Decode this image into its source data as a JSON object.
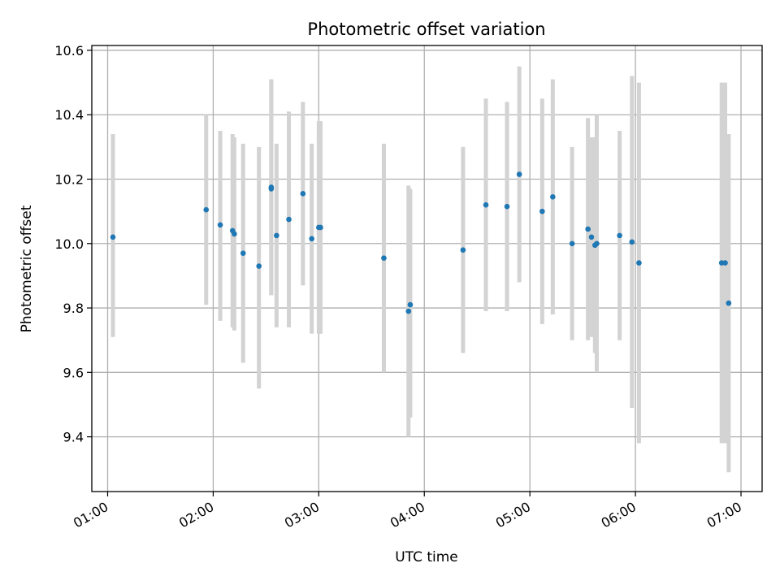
{
  "chart_data": {
    "type": "scatter",
    "title": "Photometric offset variation",
    "xlabel": "UTC time",
    "ylabel": "Photometric offset",
    "xlim": [
      "00:51",
      "07:12"
    ],
    "ylim": [
      9.23,
      10.615
    ],
    "x_ticks": [
      "01:00",
      "02:00",
      "03:00",
      "04:00",
      "05:00",
      "06:00",
      "07:00"
    ],
    "y_ticks": [
      9.4,
      9.6,
      9.8,
      10.0,
      10.2,
      10.4,
      10.6
    ],
    "y_tick_labels": [
      "9.4",
      "9.6",
      "9.8",
      "10.0",
      "10.2",
      "10.4",
      "10.6"
    ],
    "grid": true,
    "colors": {
      "points": "#1f77b4",
      "error_bars": "#d3d3d3",
      "grid": "#b0b0b0"
    },
    "points": [
      {
        "x": "01:03",
        "y": 10.02,
        "lo": 9.71,
        "hi": 10.34
      },
      {
        "x": "01:56",
        "y": 10.105,
        "lo": 9.81,
        "hi": 10.4
      },
      {
        "x": "02:04",
        "y": 10.058,
        "lo": 9.76,
        "hi": 10.35
      },
      {
        "x": "02:11",
        "y": 10.04,
        "lo": 9.74,
        "hi": 10.34
      },
      {
        "x": "02:12",
        "y": 10.03,
        "lo": 9.73,
        "hi": 10.33
      },
      {
        "x": "02:17",
        "y": 9.97,
        "lo": 9.63,
        "hi": 10.31
      },
      {
        "x": "02:26",
        "y": 9.93,
        "lo": 9.55,
        "hi": 10.3
      },
      {
        "x": "02:33",
        "y": 10.17,
        "lo": 9.84,
        "hi": 10.51
      },
      {
        "x": "02:33",
        "y": 10.175,
        "lo": 9.84,
        "hi": 10.51
      },
      {
        "x": "02:36",
        "y": 10.025,
        "lo": 9.74,
        "hi": 10.31
      },
      {
        "x": "02:43",
        "y": 10.075,
        "lo": 9.74,
        "hi": 10.41
      },
      {
        "x": "02:51",
        "y": 10.155,
        "lo": 9.87,
        "hi": 10.44
      },
      {
        "x": "02:56",
        "y": 10.015,
        "lo": 9.72,
        "hi": 10.31
      },
      {
        "x": "03:00",
        "y": 10.05,
        "lo": 9.72,
        "hi": 10.38
      },
      {
        "x": "03:01",
        "y": 10.05,
        "lo": 9.72,
        "hi": 10.38
      },
      {
        "x": "03:37",
        "y": 9.955,
        "lo": 9.6,
        "hi": 10.31
      },
      {
        "x": "03:51",
        "y": 9.79,
        "lo": 9.4,
        "hi": 10.18
      },
      {
        "x": "03:52",
        "y": 9.81,
        "lo": 9.46,
        "hi": 10.17
      },
      {
        "x": "04:22",
        "y": 9.98,
        "lo": 9.66,
        "hi": 10.3
      },
      {
        "x": "04:35",
        "y": 10.12,
        "lo": 9.79,
        "hi": 10.45
      },
      {
        "x": "04:47",
        "y": 10.115,
        "lo": 9.79,
        "hi": 10.44
      },
      {
        "x": "04:54",
        "y": 10.215,
        "lo": 9.88,
        "hi": 10.55
      },
      {
        "x": "05:07",
        "y": 10.1,
        "lo": 9.75,
        "hi": 10.45
      },
      {
        "x": "05:13",
        "y": 10.145,
        "lo": 9.78,
        "hi": 10.51
      },
      {
        "x": "05:24",
        "y": 10.0,
        "lo": 9.7,
        "hi": 10.3
      },
      {
        "x": "05:33",
        "y": 10.045,
        "lo": 9.7,
        "hi": 10.39
      },
      {
        "x": "05:35",
        "y": 10.02,
        "lo": 9.71,
        "hi": 10.33
      },
      {
        "x": "05:37",
        "y": 9.995,
        "lo": 9.66,
        "hi": 10.33
      },
      {
        "x": "05:38",
        "y": 10.0,
        "lo": 9.6,
        "hi": 10.4
      },
      {
        "x": "05:51",
        "y": 10.025,
        "lo": 9.7,
        "hi": 10.35
      },
      {
        "x": "05:58",
        "y": 10.005,
        "lo": 9.49,
        "hi": 10.52
      },
      {
        "x": "06:02",
        "y": 9.94,
        "lo": 9.38,
        "hi": 10.5
      },
      {
        "x": "06:49",
        "y": 9.94,
        "lo": 9.38,
        "hi": 10.5
      },
      {
        "x": "06:51",
        "y": 9.94,
        "lo": 9.38,
        "hi": 10.5
      },
      {
        "x": "06:53",
        "y": 9.815,
        "lo": 9.29,
        "hi": 10.34
      }
    ]
  }
}
